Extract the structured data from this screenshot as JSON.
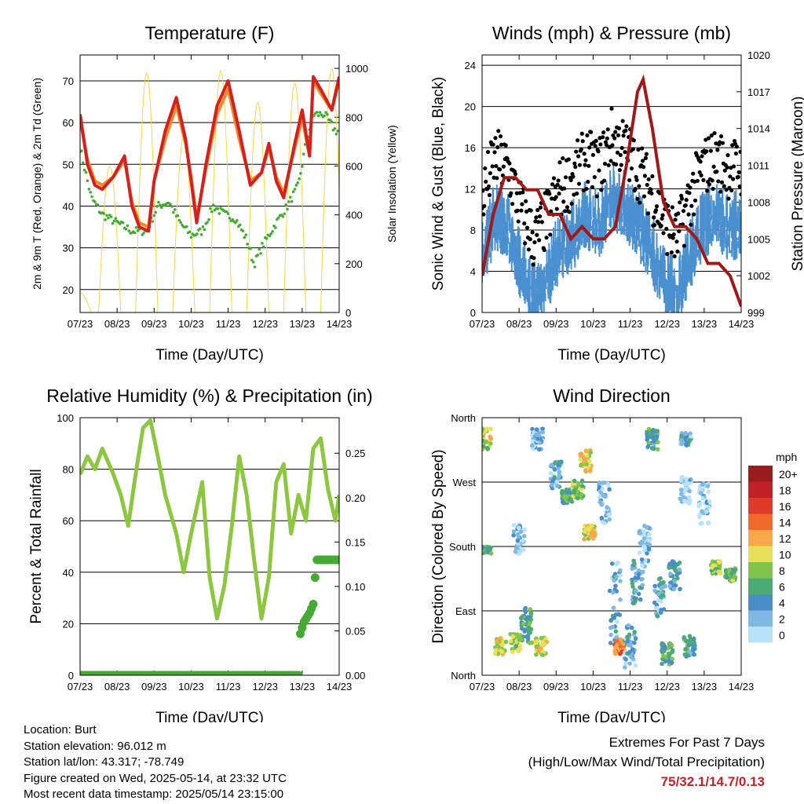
{
  "chart_data": [
    {
      "id": "temp",
      "type": "line",
      "title": "Temperature (F)",
      "xlabel": "Time (Day/UTC)",
      "ylabel": "2m & 9m T (Red, Orange) & 2m Td (Green)",
      "y2label": "Solar Insolation (Yellow)",
      "xticks": [
        "07/23",
        "08/23",
        "09/23",
        "10/23",
        "11/23",
        "12/23",
        "13/23",
        "14/23"
      ],
      "xlim": [
        0,
        7
      ],
      "ylim": [
        14.5,
        76.2
      ],
      "yticks": [
        20,
        30,
        40,
        50,
        60,
        70
      ],
      "y2lim": [
        0,
        1055
      ],
      "y2ticks": [
        0,
        200,
        400,
        600,
        800,
        1000
      ],
      "series": [
        {
          "name": "2m T",
          "color": "#d62020",
          "x": [
            0,
            0.2,
            0.4,
            0.6,
            0.9,
            1.2,
            1.4,
            1.6,
            1.85,
            2.0,
            2.3,
            2.6,
            2.85,
            3.0,
            3.15,
            3.4,
            3.7,
            4.0,
            4.3,
            4.6,
            4.9,
            5.1,
            5.3,
            5.5,
            5.8,
            6.0,
            6.2,
            6.3,
            6.5,
            6.8,
            7.0
          ],
          "y": [
            62,
            50,
            45,
            44,
            47,
            52,
            40,
            35,
            34,
            46,
            58,
            66,
            56,
            46,
            36,
            50,
            64,
            70,
            58,
            45,
            48,
            55,
            46,
            42,
            55,
            63,
            52,
            71,
            68,
            63,
            71
          ]
        },
        {
          "name": "9m T",
          "color": "#f08a24",
          "x": [
            0,
            0.2,
            0.4,
            0.6,
            0.9,
            1.2,
            1.4,
            1.6,
            1.85,
            2.0,
            2.3,
            2.6,
            2.85,
            3.0,
            3.15,
            3.4,
            3.7,
            4.0,
            4.3,
            4.6,
            4.9,
            5.1,
            5.3,
            5.5,
            5.8,
            6.0,
            6.2,
            6.3,
            6.5,
            6.8,
            7.0
          ],
          "y": [
            61,
            51,
            46,
            45,
            47,
            51,
            41,
            36,
            35,
            46,
            56,
            64,
            55,
            47,
            37,
            49,
            62,
            68,
            56,
            46,
            48,
            54,
            47,
            43,
            54,
            61,
            52,
            70,
            67,
            63,
            70
          ]
        },
        {
          "name": "2m Td",
          "color": "#44aa33",
          "x": [
            0,
            0.3,
            0.6,
            1.0,
            1.4,
            1.8,
            2.1,
            2.4,
            2.7,
            3.0,
            3.3,
            3.6,
            3.9,
            4.2,
            4.5,
            4.7,
            4.9,
            5.1,
            5.3,
            5.6,
            5.9,
            6.1,
            6.3,
            6.6,
            6.9,
            7.0
          ],
          "y": [
            54,
            42,
            38,
            36,
            34,
            34,
            40,
            41,
            36,
            33,
            34,
            40,
            38,
            37,
            32,
            26,
            30,
            33,
            36,
            40,
            45,
            55,
            62,
            62,
            58,
            58
          ]
        },
        {
          "name": "Solar",
          "color": "#f5d742",
          "peaks": [
            0.0,
            0.8,
            1.8,
            2.8,
            3.8,
            4.8,
            5.8,
            6.8
          ],
          "peak_values": [
            80,
            600,
            980,
            720,
            990,
            860,
            940,
            1000
          ]
        }
      ]
    },
    {
      "id": "wind",
      "type": "line",
      "title": "Winds (mph) & Pressure (mb)",
      "xlabel": "Time (Day/UTC)",
      "ylabel": "Sonic Wind & Gust (Blue, Black)",
      "y2label": "Station Pressure (Maroon)",
      "xticks": [
        "07/23",
        "08/23",
        "09/23",
        "10/23",
        "11/23",
        "12/23",
        "13/23",
        "14/23"
      ],
      "xlim": [
        0,
        7
      ],
      "ylim": [
        0,
        25
      ],
      "yticks": [
        0,
        4,
        8,
        12,
        16,
        20,
        24
      ],
      "y2lim": [
        999,
        1020
      ],
      "y2ticks": [
        999,
        1002,
        1005,
        1008,
        1011,
        1014,
        1017,
        1020
      ],
      "series": [
        {
          "name": "Wind",
          "color": "#4a90d0",
          "step": 0.35,
          "y": [
            6,
            10,
            9,
            5,
            2,
            4,
            7,
            8,
            10,
            9,
            12,
            11,
            9,
            7,
            4,
            2,
            6,
            9,
            10,
            9,
            9
          ]
        },
        {
          "name": "Gust",
          "color": "#000000"
        },
        {
          "name": "Pressure",
          "color": "#a01818",
          "x": [
            0,
            0.3,
            0.6,
            0.9,
            1.2,
            1.5,
            1.8,
            2.1,
            2.4,
            2.7,
            3.0,
            3.3,
            3.6,
            3.9,
            4.2,
            4.35,
            4.6,
            4.9,
            5.2,
            5.5,
            5.8,
            6.1,
            6.4,
            6.7,
            7.0
          ],
          "y": [
            1002,
            1007,
            1010,
            1010,
            1009,
            1009,
            1007,
            1007,
            1005,
            1006,
            1005,
            1005,
            1006,
            1011,
            1017,
            1018,
            1014,
            1008,
            1006,
            1006,
            1005,
            1003,
            1003,
            1002,
            999.5
          ]
        }
      ]
    },
    {
      "id": "rh",
      "type": "line",
      "title": "Relative Humidity (%) & Precipitation (in)",
      "xlabel": "Time (Day/UTC)",
      "ylabel": "Percent & Total Rainfall",
      "xticks": [
        "07/23",
        "08/23",
        "09/23",
        "10/23",
        "11/23",
        "12/23",
        "13/23",
        "14/23"
      ],
      "xlim": [
        0,
        7
      ],
      "ylim": [
        0,
        100
      ],
      "yticks": [
        0,
        20,
        40,
        60,
        80,
        100
      ],
      "y2lim": [
        0,
        0.29
      ],
      "y2ticks": [
        "0.00",
        "0.05",
        "0.10",
        "0.15",
        "0.20",
        "0.25"
      ],
      "series": [
        {
          "name": "RH",
          "color": "#8dc63f",
          "x": [
            0,
            0.2,
            0.4,
            0.6,
            0.9,
            1.1,
            1.3,
            1.5,
            1.7,
            1.9,
            2.1,
            2.3,
            2.6,
            2.8,
            3.0,
            3.3,
            3.5,
            3.7,
            3.9,
            4.1,
            4.3,
            4.5,
            4.7,
            4.9,
            5.1,
            5.3,
            5.5,
            5.7,
            5.9,
            6.1,
            6.3,
            6.5,
            6.7,
            6.9,
            7.0
          ],
          "y": [
            78,
            85,
            80,
            88,
            78,
            70,
            58,
            78,
            96,
            99,
            85,
            70,
            55,
            40,
            55,
            75,
            38,
            22,
            35,
            58,
            85,
            70,
            45,
            22,
            38,
            75,
            82,
            55,
            70,
            60,
            88,
            92,
            72,
            60,
            70
          ]
        },
        {
          "name": "Precip",
          "color": "#44aa33",
          "x": [
            0,
            5.9,
            5.9,
            6.05,
            6.2,
            6.3,
            6.35,
            6.4,
            7.0
          ],
          "y": [
            0,
            0,
            0.04,
            0.06,
            0.07,
            0.08,
            0.11,
            0.13,
            0.13
          ]
        }
      ]
    },
    {
      "id": "dir",
      "type": "scatter",
      "title": "Wind Direction",
      "xlabel": "Time (Day/UTC)",
      "ylabel": "Direction (Colored By Speed)",
      "xticks": [
        "07/23",
        "08/23",
        "09/23",
        "10/23",
        "11/23",
        "12/23",
        "13/23",
        "14/23"
      ],
      "xlim": [
        0,
        7
      ],
      "ylim": [
        0,
        360
      ],
      "yticks": [
        "North",
        "East",
        "South",
        "West",
        "North"
      ],
      "legend": {
        "title": "mph",
        "labels": [
          "20+",
          "18",
          "16",
          "14",
          "12",
          "10",
          "8",
          "6",
          "4",
          "2",
          "0"
        ],
        "colors": [
          "#9b1c1f",
          "#c0202a",
          "#e03a2a",
          "#f06a2a",
          "#f8a848",
          "#e8e058",
          "#80c44c",
          "#4caa74",
          "#4a8ec8",
          "#80b8e4",
          "#b8e2f8"
        ]
      },
      "clusters": [
        [
          0.1,
          330,
          30,
          9
        ],
        [
          0.1,
          175,
          10,
          6
        ],
        [
          0.5,
          40,
          25,
          10
        ],
        [
          0.9,
          45,
          25,
          8
        ],
        [
          1.0,
          190,
          40,
          2
        ],
        [
          1.2,
          70,
          50,
          6
        ],
        [
          1.5,
          330,
          30,
          2
        ],
        [
          1.6,
          40,
          25,
          10
        ],
        [
          2.0,
          280,
          40,
          3
        ],
        [
          2.3,
          250,
          20,
          6
        ],
        [
          2.6,
          260,
          25,
          8
        ],
        [
          2.8,
          300,
          30,
          10
        ],
        [
          2.9,
          200,
          20,
          10
        ],
        [
          3.3,
          240,
          60,
          2
        ],
        [
          3.6,
          100,
          120,
          3
        ],
        [
          3.7,
          40,
          20,
          13
        ],
        [
          4.0,
          40,
          60,
          3
        ],
        [
          4.2,
          130,
          60,
          4
        ],
        [
          4.4,
          180,
          60,
          2
        ],
        [
          4.6,
          330,
          30,
          5
        ],
        [
          4.8,
          110,
          60,
          3
        ],
        [
          5.0,
          30,
          30,
          6
        ],
        [
          5.2,
          140,
          40,
          4
        ],
        [
          5.5,
          260,
          40,
          1
        ],
        [
          5.5,
          330,
          20,
          3
        ],
        [
          5.6,
          40,
          30,
          5
        ],
        [
          6.0,
          240,
          60,
          1
        ],
        [
          6.3,
          150,
          20,
          8
        ],
        [
          6.7,
          140,
          20,
          7
        ]
      ]
    }
  ],
  "footer": {
    "lines": [
      "Location: Burt",
      "Station elevation: 96.012 m",
      "Station lat/lon: 43.317; -78.749",
      "Figure created on Wed, 2025-05-14, at 23:32 UTC",
      "Most recent data timestamp: 2025/05/14 23:15:00"
    ],
    "extremes_title": "Extremes For Past 7 Days",
    "extremes_sub": "(High/Low/Max Wind/Total Precipitation)",
    "extremes_value": "75/32.1/14.7/0.13"
  }
}
